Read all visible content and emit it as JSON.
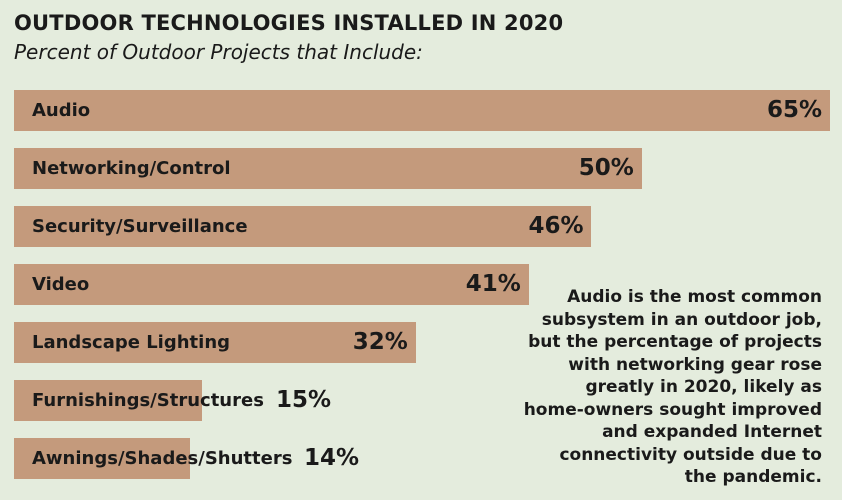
{
  "chart_data": {
    "type": "bar",
    "orientation": "horizontal",
    "title": "OUTDOOR TECHNOLOGIES INSTALLED IN 2020",
    "subtitle": "Percent of Outdoor Projects that Include:",
    "categories": [
      "Audio",
      "Networking/Control",
      "Security/Surveillance",
      "Video",
      "Landscape Lighting",
      "Furnishings/Structures",
      "Awnings/Shades/Shutters"
    ],
    "values": [
      65,
      50,
      46,
      41,
      32,
      15,
      14
    ],
    "value_labels": [
      "65%",
      "50%",
      "46%",
      "41%",
      "32%",
      "15%",
      "14%"
    ],
    "unit": "%",
    "bar_color": "#c49a7c",
    "background_color": "#e4ecdd"
  },
  "annotation": "Audio is the most common subsystem in an outdoor job, but the percentage of projects with networking gear rose greatly in 2020, likely as home-owners sought improved and expanded Internet connectivity outside due to the pandemic."
}
